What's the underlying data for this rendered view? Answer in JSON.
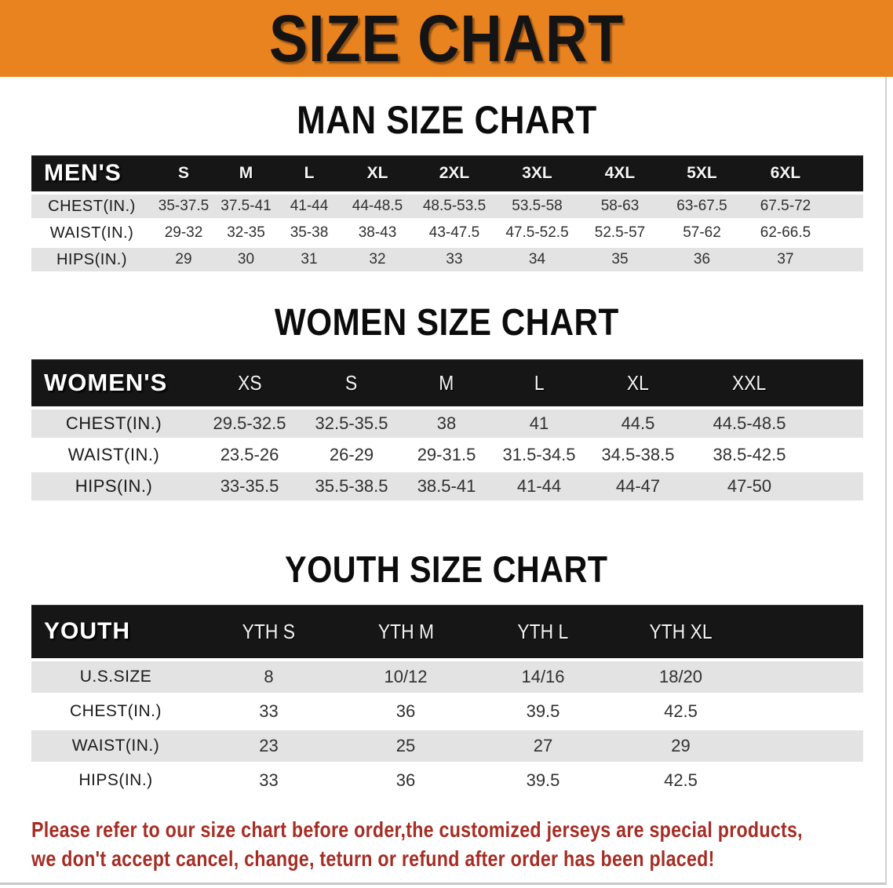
{
  "banner": {
    "title": "SIZE CHART",
    "bg_color": "#E8831F"
  },
  "sections": [
    {
      "heading": "MAN SIZE CHART",
      "table": {
        "corner_label": "MEN'S",
        "columns": [
          "S",
          "M",
          "L",
          "XL",
          "2XL",
          "3XL",
          "4XL",
          "5XL",
          "6XL"
        ],
        "rows": [
          {
            "label": "CHEST(IN.)",
            "values": [
              "35-37.5",
              "37.5-41",
              "41-44",
              "44-48.5",
              "48.5-53.5",
              "53.5-58",
              "58-63",
              "63-67.5",
              "67.5-72"
            ]
          },
          {
            "label": "WAIST(IN.)",
            "values": [
              "29-32",
              "32-35",
              "35-38",
              "38-43",
              "43-47.5",
              "47.5-52.5",
              "52.5-57",
              "57-62",
              "62-66.5"
            ]
          },
          {
            "label": "HIPS(IN.)",
            "values": [
              "29",
              "30",
              "31",
              "32",
              "33",
              "34",
              "35",
              "36",
              "37"
            ]
          }
        ]
      }
    },
    {
      "heading": "WOMEN SIZE CHART",
      "table": {
        "corner_label": "WOMEN'S",
        "columns": [
          "XS",
          "S",
          "M",
          "L",
          "XL",
          "XXL"
        ],
        "rows": [
          {
            "label": "CHEST(IN.)",
            "values": [
              "29.5-32.5",
              "32.5-35.5",
              "38",
              "41",
              "44.5",
              "44.5-48.5"
            ]
          },
          {
            "label": "WAIST(IN.)",
            "values": [
              "23.5-26",
              "26-29",
              "29-31.5",
              "31.5-34.5",
              "34.5-38.5",
              "38.5-42.5"
            ]
          },
          {
            "label": "HIPS(IN.)",
            "values": [
              "33-35.5",
              "35.5-38.5",
              "38.5-41",
              "41-44",
              "44-47",
              "47-50"
            ]
          }
        ]
      }
    },
    {
      "heading": "YOUTH SIZE CHART",
      "table": {
        "corner_label": "YOUTH",
        "columns": [
          "YTH S",
          "YTH M",
          "YTH L",
          "YTH XL"
        ],
        "rows": [
          {
            "label": "U.S.SIZE",
            "values": [
              "8",
              "10/12",
              "14/16",
              "18/20"
            ]
          },
          {
            "label": "CHEST(IN.)",
            "values": [
              "33",
              "36",
              "39.5",
              "42.5"
            ]
          },
          {
            "label": "WAIST(IN.)",
            "values": [
              "23",
              "25",
              "27",
              "29"
            ]
          },
          {
            "label": "HIPS(IN.)",
            "values": [
              "33",
              "36",
              "39.5",
              "42.5"
            ]
          }
        ]
      }
    }
  ],
  "disclaimer": {
    "line1": "Please refer to our size chart before order,the customized jerseys are special products,",
    "line2": "we don't accept cancel, change, teturn or refund after order has been placed!",
    "color": "#A62D24"
  }
}
